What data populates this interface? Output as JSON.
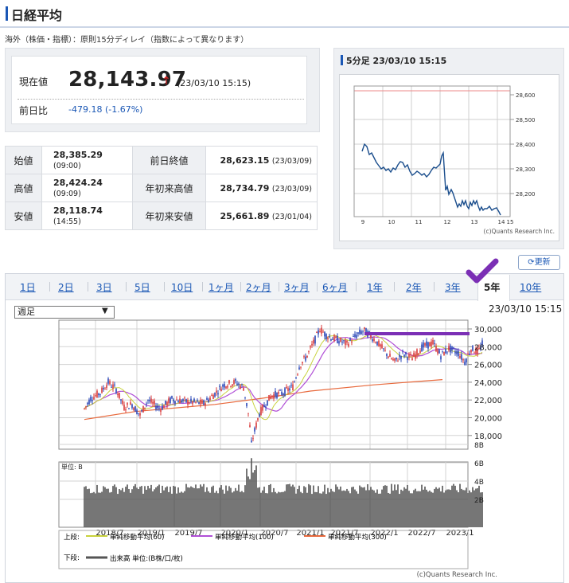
{
  "header": {
    "title": "日経平均",
    "note": "海外（株価・指標）：原則15分ディレイ（指数によって異なります）"
  },
  "quote": {
    "current_label": "現在値",
    "current_value": "28,143.97",
    "arrow": "↑",
    "current_time": "(23/03/10 15:15)",
    "change_label": "前日比",
    "change_value": "-479.18 (-1.67%)"
  },
  "stats": [
    {
      "label": "始値",
      "value": "28,385.29",
      "time": "(09:00)",
      "label2": "前日終値",
      "value2": "28,623.15",
      "time2": "(23/03/09)"
    },
    {
      "label": "高値",
      "value": "28,424.24",
      "time": "(09:09)",
      "label2": "年初来高値",
      "value2": "28,734.79",
      "time2": "(23/03/09)"
    },
    {
      "label": "安値",
      "value": "28,118.74",
      "time": "(14:55)",
      "label2": "年初来安値",
      "value2": "25,661.89",
      "time2": "(23/01/04)"
    }
  ],
  "intraday": {
    "title": "5分足 23/03/10 15:15",
    "y_ticks": [
      "28,600",
      "28,500",
      "28,400",
      "28,300",
      "28,200"
    ],
    "x_ticks": [
      "9",
      "10",
      "11",
      "12",
      "13",
      "14",
      "15"
    ],
    "copyright": "(c)Quants Research Inc."
  },
  "controls": {
    "update_label": "更新",
    "tabs": [
      "1日",
      "2日",
      "3日",
      "5日",
      "10日",
      "1ヶ月",
      "2ヶ月",
      "3ヶ月",
      "6ヶ月",
      "1年",
      "2年",
      "3年",
      "5年",
      "10年"
    ],
    "active_tab": "5年",
    "select_value": "週足",
    "chart_time": "23/03/10 15:15"
  },
  "big_chart": {
    "y_ticks": [
      "30,000",
      "28,000",
      "26,000",
      "24,000",
      "22,000",
      "20,000",
      "18,000"
    ],
    "vol_unit": "単位: B",
    "vol_ticks": [
      "8B",
      "6B",
      "4B",
      "2B"
    ],
    "x_ticks": [
      "2018/7",
      "2019/1",
      "2019/7",
      "2020/1",
      "2020/7",
      "2021/1",
      "2021/7",
      "2022/1",
      "2022/7",
      "2023/1"
    ],
    "legend_upper_label": "上段:",
    "legend_ma60": "単純移動平均(60)",
    "legend_ma100": "単純移動平均(100)",
    "legend_ma300": "単純移動平均(300)",
    "legend_lower_label": "下段:",
    "legend_volume": "出来高 単位:(B株/口/枚)",
    "copyright": "(c)Quants Research Inc.",
    "colors": {
      "ma60": "#c8d23c",
      "ma100": "#b04fd6",
      "ma300": "#e8693c",
      "candle_up": "#d93a3a",
      "candle_down": "#2a47b8",
      "annotation": "#7b2fb5"
    }
  }
}
